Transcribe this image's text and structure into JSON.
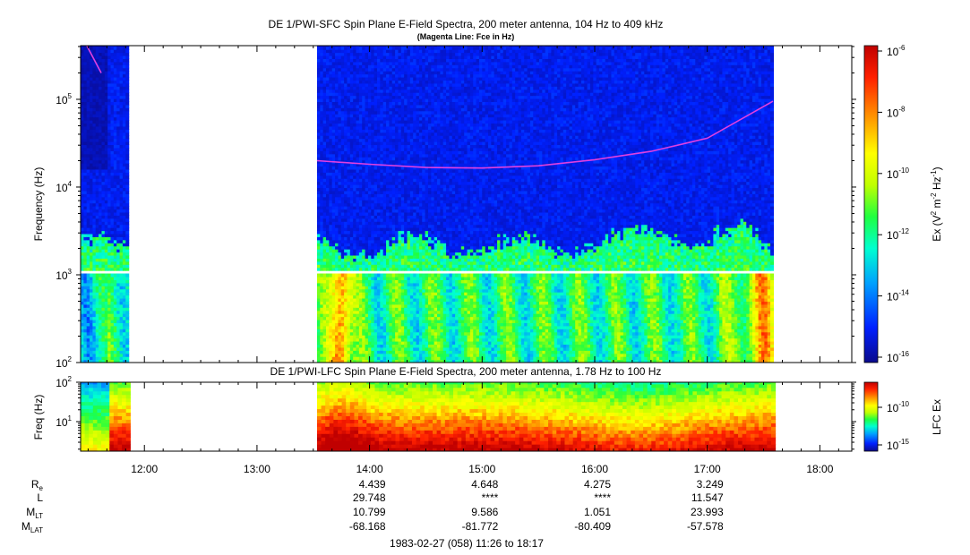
{
  "chart_data": [
    {
      "type": "heatmap",
      "title": "DE 1/PWI-SFC  Spin Plane E-Field Spectra, 200 meter antenna, 104 Hz to 409 kHz",
      "subtitle": "(Magenta Line: Fce in Hz)",
      "ylabel": "Frequency (Hz)",
      "ylim": [
        100,
        409000
      ],
      "y_scale": "log",
      "y_ticks": [
        {
          "value": 100,
          "base": "10",
          "exp": "2"
        },
        {
          "value": 1000,
          "base": "10",
          "exp": "3"
        },
        {
          "value": 10000,
          "base": "10",
          "exp": "4"
        },
        {
          "value": 100000,
          "base": "10",
          "exp": "5"
        }
      ],
      "data_segments_ut": [
        [
          "11:26",
          "11:51"
        ],
        [
          "13:32",
          "17:35"
        ]
      ],
      "fce_line_hz": [
        {
          "t": "11:29",
          "f": 420000
        },
        {
          "t": "11:37",
          "f": 200000
        },
        {
          "t": "13:32",
          "f": 20000
        },
        {
          "t": "14:00",
          "f": 18200
        },
        {
          "t": "14:30",
          "f": 16700
        },
        {
          "t": "15:00",
          "f": 16500
        },
        {
          "t": "15:30",
          "f": 17500
        },
        {
          "t": "16:00",
          "f": 20500
        },
        {
          "t": "16:30",
          "f": 25500
        },
        {
          "t": "17:00",
          "f": 36000
        },
        {
          "t": "17:35",
          "f": 95000
        }
      ],
      "colorbar": {
        "label_base": "Ex (V",
        "label_sup1": "2",
        "label_mid": " m",
        "label_sup2": "-2",
        "label_mid2": " Hz",
        "label_sup3": "-1",
        "label_end": ")",
        "ticks": [
          {
            "base": "10",
            "exp": "-6"
          },
          {
            "base": "10",
            "exp": "-8"
          },
          {
            "base": "10",
            "exp": "-10"
          },
          {
            "base": "10",
            "exp": "-12"
          },
          {
            "base": "10",
            "exp": "-14"
          },
          {
            "base": "10",
            "exp": "-16"
          }
        ]
      }
    },
    {
      "type": "heatmap",
      "title": "DE 1/PWI-LFC  Spin Plane E-Field Spectra, 200 meter antenna, 1.78 Hz to 100 Hz",
      "ylabel": "Freq (Hz)",
      "ylim": [
        1.78,
        100
      ],
      "y_scale": "log",
      "y_ticks": [
        {
          "value": 10,
          "base": "10",
          "exp": "1"
        },
        {
          "value": 100,
          "base": "10",
          "exp": "2"
        }
      ],
      "data_segments_ut": [
        [
          "11:26",
          "11:51"
        ],
        [
          "13:32",
          "17:35"
        ]
      ],
      "colorbar": {
        "label": "LFC Ex",
        "ticks": [
          {
            "base": "10",
            "exp": "-10"
          },
          {
            "base": "10",
            "exp": "-15"
          }
        ]
      }
    }
  ],
  "x_axis": {
    "tick_labels": [
      "12:00",
      "13:00",
      "14:00",
      "15:00",
      "16:00",
      "17:00",
      "18:00"
    ],
    "range_ut": [
      "11:26",
      "18:17"
    ]
  },
  "ephemeris": {
    "rows": [
      {
        "label": "R",
        "sub": "e",
        "values": [
          "4.439",
          "4.648",
          "4.275",
          "3.249"
        ]
      },
      {
        "label": "L",
        "sub": "",
        "values": [
          "29.748",
          "****",
          "****",
          "11.547"
        ]
      },
      {
        "label": "M",
        "sub": "LT",
        "values": [
          "10.799",
          "9.586",
          "1.051",
          "23.993"
        ]
      },
      {
        "label": "M",
        "sub": "LAT",
        "values": [
          "-68.168",
          "-81.772",
          "-80.409",
          "-57.578"
        ]
      }
    ],
    "at_times": [
      "14:00",
      "15:00",
      "16:00",
      "17:00"
    ]
  },
  "footer": "1983-02-27 (058) 11:26 to 18:17",
  "colors": {
    "fce_line": "#e040e0",
    "colormap": [
      "#0a0a8c",
      "#0020ff",
      "#00a0ff",
      "#00ffd0",
      "#20ff40",
      "#c0ff00",
      "#ffff00",
      "#ff9000",
      "#ff2000",
      "#c00000"
    ]
  }
}
